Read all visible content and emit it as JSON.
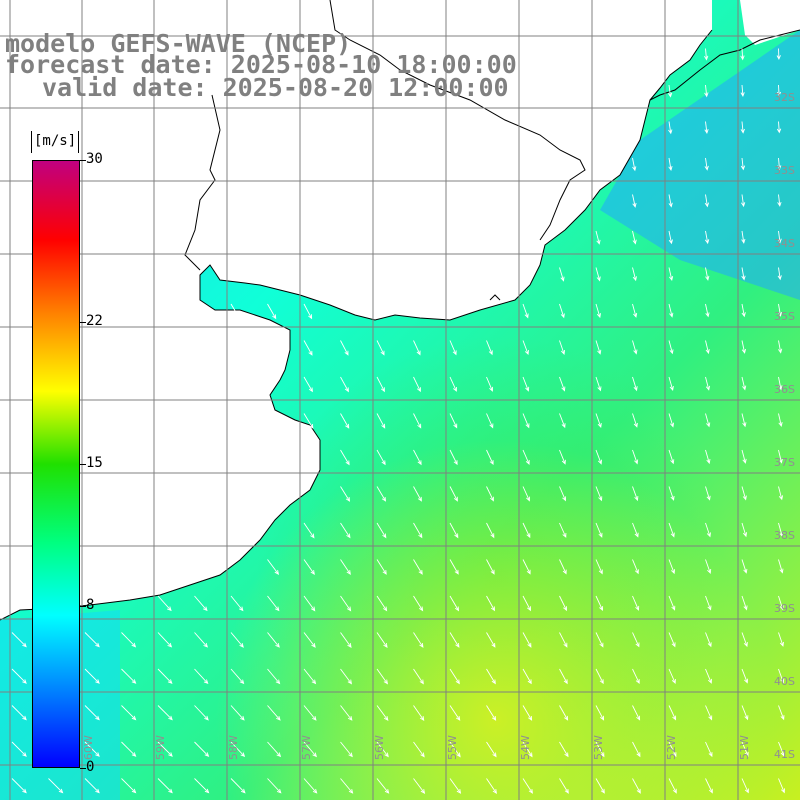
{
  "title": {
    "model": "modelo GEFS-WAVE (NCEP)",
    "forecast": "forecast date: 2025-08-10 18:00:00",
    "valid": "valid date: 2025-08-20 12:00:00"
  },
  "colorbar": {
    "unit": "[m/s]",
    "ticks": [
      {
        "label": "30",
        "value": 30
      },
      {
        "label": "22",
        "value": 22
      },
      {
        "label": "15",
        "value": 15
      },
      {
        "label": "8",
        "value": 8
      },
      {
        "label": "0",
        "value": 0
      }
    ],
    "min": 0,
    "max": 30,
    "colors": [
      "#0000ff",
      "#0090ff",
      "#00ffff",
      "#00ff80",
      "#20e000",
      "#ffff00",
      "#ff8000",
      "#ff0000",
      "#c00080"
    ]
  },
  "map": {
    "lat_labels": [
      "32S",
      "33S",
      "34S",
      "35S",
      "36S",
      "37S",
      "38S",
      "39S",
      "40S",
      "41S"
    ],
    "lon_labels": [
      "60W",
      "59W",
      "58W",
      "57W",
      "56W",
      "55W",
      "54W",
      "53W",
      "52W",
      "51W"
    ],
    "arrow_color": "#ffffff",
    "land_color": "#ffffff",
    "grid_color": "#808080",
    "coast_color": "#000000"
  }
}
